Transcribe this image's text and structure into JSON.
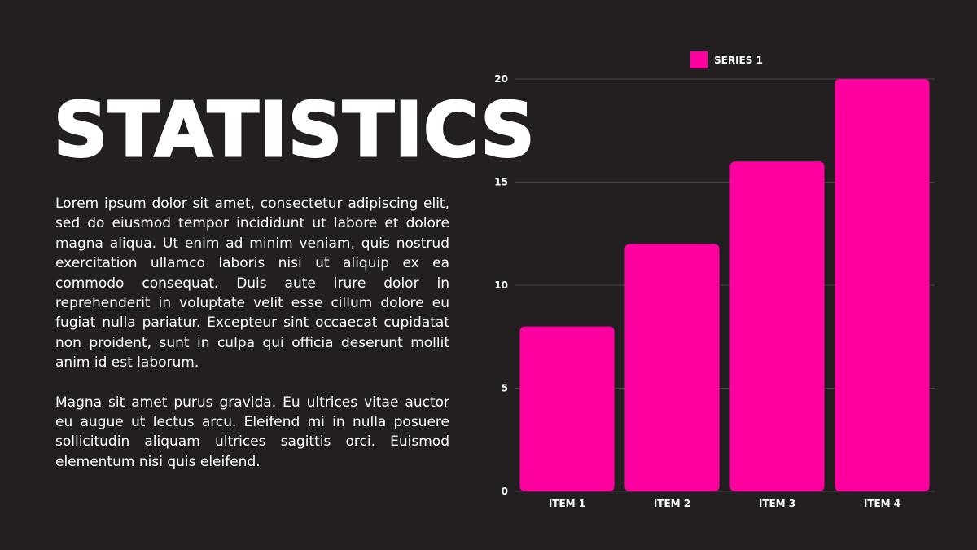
{
  "slide": {
    "title": "STATISTICS",
    "paragraphs": [
      "Lorem ipsum dolor sit amet, consectetur adipiscing elit, sed do eiusmod tempor incididunt ut labore et dolore magna aliqua. Ut enim ad minim veniam, quis nostrud exercitation ullamco laboris nisi ut aliquip ex ea commodo consequat. Duis aute irure dolor in reprehenderit in voluptate velit esse cillum dolore eu fugiat nulla pariatur. Excepteur sint occaecat cupidatat non proident, sunt in culpa qui officia deserunt mollit anim id est laborum.",
      "Magna sit amet purus gravida. Eu ultrices vitae auctor eu augue ut lectus arcu. Eleifend mi in nulla posuere sollicitudin aliquam ultrices sagittis orci. Euismod elementum nisi quis eleifend."
    ]
  },
  "colors": {
    "background": "#231f20",
    "text": "#ffffff",
    "bar": "#ff00a0",
    "grid": "#4a4446"
  },
  "chart_data": {
    "type": "bar",
    "categories": [
      "ITEM 1",
      "ITEM 2",
      "ITEM 3",
      "ITEM 4"
    ],
    "series": [
      {
        "name": "SERIES 1",
        "values": [
          8,
          12,
          16,
          20
        ]
      }
    ],
    "title": "",
    "xlabel": "",
    "ylabel": "",
    "ylim": [
      0,
      20
    ],
    "yticks": [
      0,
      5,
      10,
      15,
      20
    ],
    "grid": true,
    "legend": "top-center"
  }
}
